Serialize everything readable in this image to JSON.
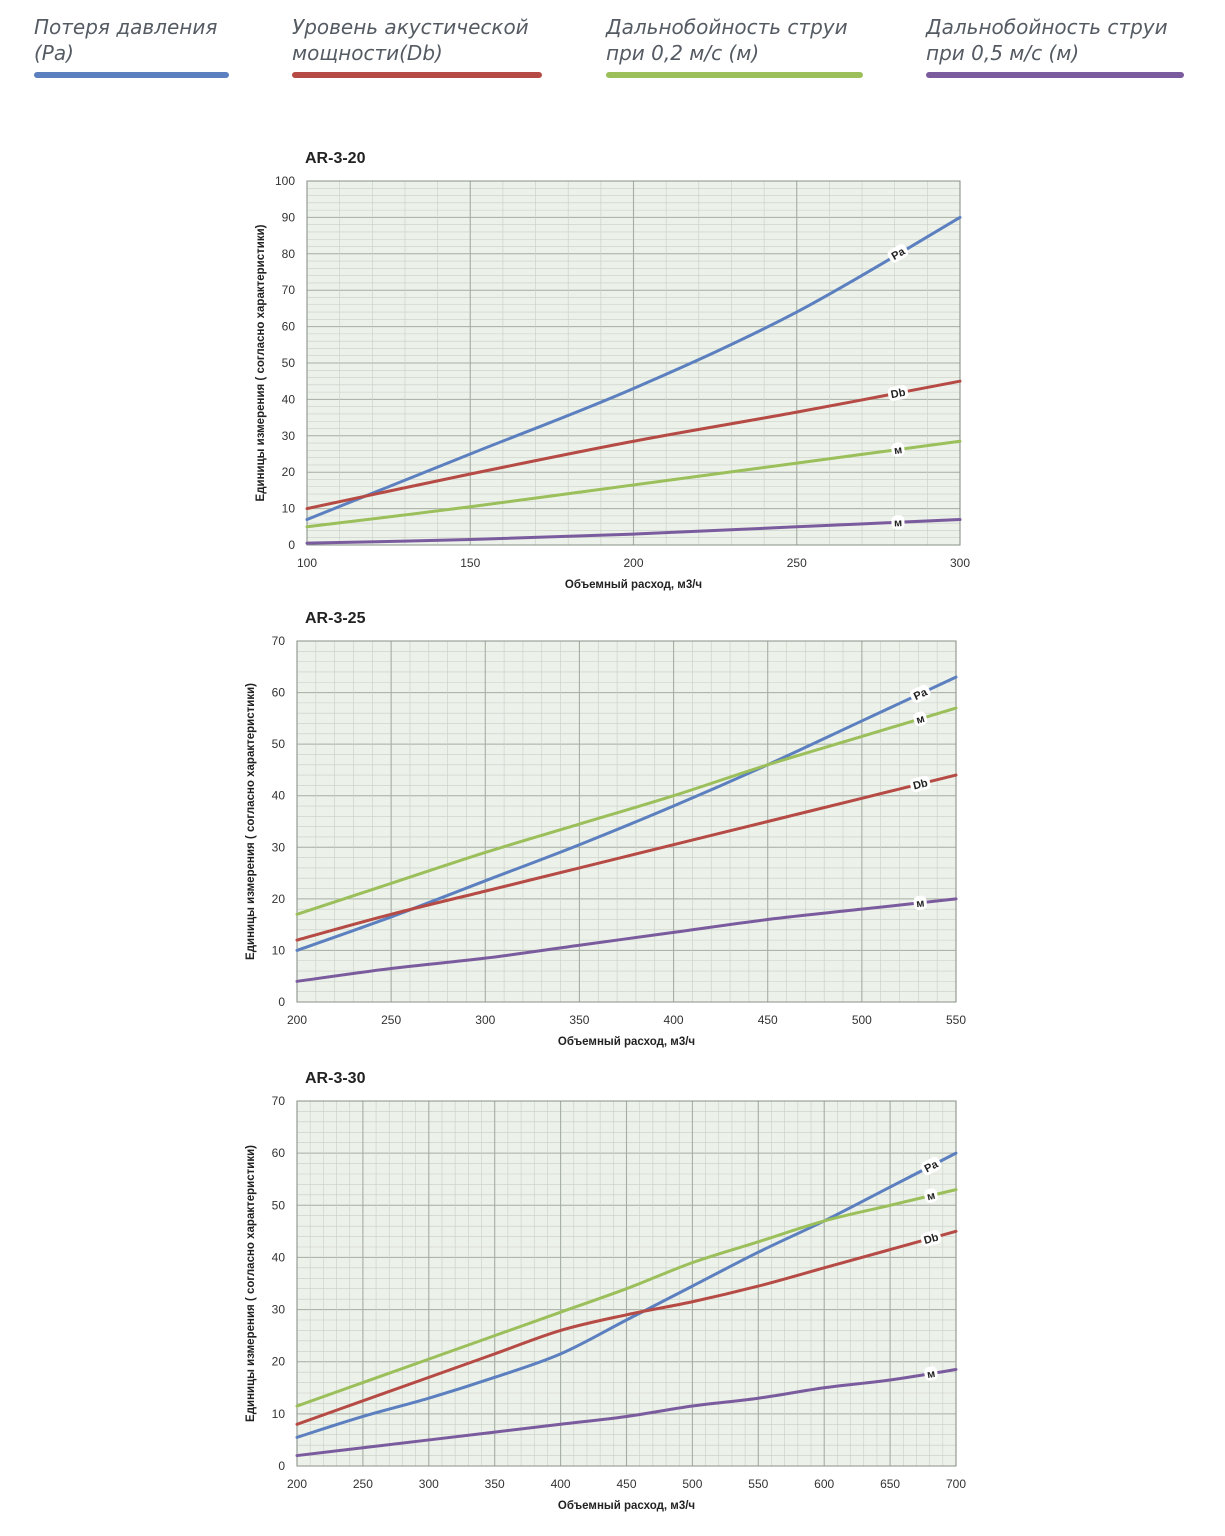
{
  "legend": [
    {
      "label": "Потеря давления\n(Pa)",
      "color": "#5b7fbf"
    },
    {
      "label": "Уровень акустической\nмощности(Db)",
      "color": "#b54b44"
    },
    {
      "label": "Дальнобойность струи\nпри 0,2 м/с (м)",
      "color": "#9bbf5a"
    },
    {
      "label": "Дальнобойность струи\nпри 0,5 м/с (м)",
      "color": "#7a5c9e"
    }
  ],
  "colors": {
    "pa": "#5b7fbf",
    "db": "#b54b44",
    "m02": "#9bbf5a",
    "m05": "#7a5c9e",
    "plot_bg": "#ecf1ea",
    "grid_minor": "#c9d0c6",
    "grid_major": "#a6aea3"
  },
  "chart_data": [
    {
      "type": "line",
      "title": "AR-3-20",
      "xlabel": "Объемный расход, м3/ч",
      "ylabel": "Единицы измерения ( согласно характеристики)",
      "xlim": [
        100,
        300
      ],
      "ylim": [
        0,
        100
      ],
      "xticks": [
        100,
        150,
        200,
        250,
        300
      ],
      "yticks": [
        0,
        10,
        20,
        30,
        40,
        50,
        60,
        70,
        80,
        90,
        100
      ],
      "x_minor_step": 10,
      "y_minor_step": 2,
      "series": [
        {
          "name": "Pa",
          "tag": "Pa",
          "key": "pa",
          "x": [
            100,
            150,
            200,
            250,
            300
          ],
          "values": [
            7,
            25,
            43,
            64,
            90
          ]
        },
        {
          "name": "Db",
          "tag": "Db",
          "key": "db",
          "x": [
            100,
            150,
            200,
            250,
            300
          ],
          "values": [
            10,
            19.5,
            28.5,
            36.5,
            45
          ]
        },
        {
          "name": "Дальнобойность 0,2 м/с",
          "tag": "м",
          "key": "m02",
          "x": [
            100,
            150,
            200,
            250,
            300
          ],
          "values": [
            5,
            10.5,
            16.5,
            22.5,
            28.5
          ]
        },
        {
          "name": "Дальнобойность 0,5 м/с",
          "tag": "м",
          "key": "m05",
          "x": [
            100,
            150,
            200,
            250,
            300
          ],
          "values": [
            0.5,
            1.5,
            3,
            5,
            7
          ]
        }
      ]
    },
    {
      "type": "line",
      "title": "AR-3-25",
      "xlabel": "Объемный расход, м3/ч",
      "ylabel": "Единицы измерения ( согласно характеристики)",
      "xlim": [
        200,
        550
      ],
      "ylim": [
        0,
        70
      ],
      "xticks": [
        200,
        250,
        300,
        350,
        400,
        450,
        500,
        550
      ],
      "yticks": [
        0,
        10,
        20,
        30,
        40,
        50,
        60,
        70
      ],
      "x_minor_step": 10,
      "y_minor_step": 2,
      "series": [
        {
          "name": "Pa",
          "tag": "Pa",
          "key": "pa",
          "x": [
            200,
            250,
            300,
            350,
            400,
            450,
            500,
            550
          ],
          "values": [
            10,
            16.5,
            23.5,
            30.5,
            38,
            46,
            54.5,
            63
          ]
        },
        {
          "name": "Db",
          "tag": "Db",
          "key": "db",
          "x": [
            200,
            250,
            300,
            350,
            400,
            450,
            500,
            550
          ],
          "values": [
            12,
            17,
            21.5,
            26,
            30.5,
            35,
            39.5,
            44
          ]
        },
        {
          "name": "Дальнобойность 0,2 м/с",
          "tag": "м",
          "key": "m02",
          "x": [
            200,
            250,
            300,
            350,
            400,
            450,
            500,
            550
          ],
          "values": [
            17,
            23,
            29,
            34.5,
            40,
            46,
            51.5,
            57
          ]
        },
        {
          "name": "Дальнобойность 0,5 м/с",
          "tag": "м",
          "key": "m05",
          "x": [
            200,
            250,
            300,
            350,
            400,
            450,
            500,
            550
          ],
          "values": [
            4,
            6.5,
            8.5,
            11,
            13.5,
            16,
            18,
            20
          ]
        }
      ]
    },
    {
      "type": "line",
      "title": "AR-3-30",
      "xlabel": "Объемный расход, м3/ч",
      "ylabel": "Единицы измерения ( согласно характеристики)",
      "xlim": [
        200,
        700
      ],
      "ylim": [
        0,
        70
      ],
      "xticks": [
        200,
        250,
        300,
        350,
        400,
        450,
        500,
        550,
        600,
        650,
        700
      ],
      "yticks": [
        0,
        10,
        20,
        30,
        40,
        50,
        60,
        70
      ],
      "x_minor_step": 10,
      "y_minor_step": 2,
      "series": [
        {
          "name": "Pa",
          "tag": "Pa",
          "key": "pa",
          "x": [
            200,
            250,
            300,
            350,
            400,
            450,
            500,
            550,
            600,
            650,
            700
          ],
          "values": [
            5.5,
            9.5,
            13,
            17,
            21.5,
            28,
            34.5,
            41,
            47,
            53.5,
            60
          ]
        },
        {
          "name": "Db",
          "tag": "Db",
          "key": "db",
          "x": [
            200,
            250,
            300,
            350,
            400,
            450,
            500,
            550,
            600,
            650,
            700
          ],
          "values": [
            8,
            12.5,
            17,
            21.5,
            26,
            29,
            31.5,
            34.5,
            38,
            41.5,
            45
          ]
        },
        {
          "name": "Дальнобойность 0,2 м/с",
          "tag": "м",
          "key": "m02",
          "x": [
            200,
            250,
            300,
            350,
            400,
            450,
            500,
            550,
            600,
            650,
            700
          ],
          "values": [
            11.5,
            16,
            20.5,
            25,
            29.5,
            34,
            39,
            43,
            47,
            50,
            53
          ]
        },
        {
          "name": "Дальнобойность 0,5 м/с",
          "tag": "м",
          "key": "m05",
          "x": [
            200,
            250,
            300,
            350,
            400,
            450,
            500,
            550,
            600,
            650,
            700
          ],
          "values": [
            2,
            3.5,
            5,
            6.5,
            8,
            9.5,
            11.5,
            13,
            15,
            16.5,
            18.5
          ]
        }
      ]
    }
  ]
}
